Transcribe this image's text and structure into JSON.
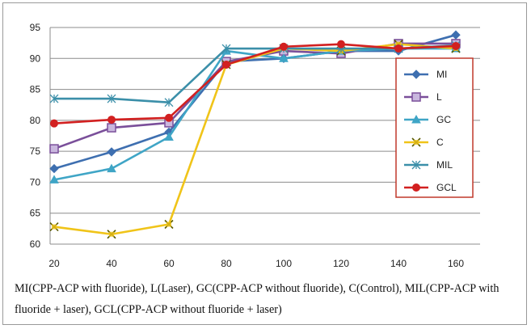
{
  "chart_data": {
    "type": "line",
    "x": [
      20,
      40,
      60,
      80,
      100,
      120,
      140,
      160
    ],
    "ylim": [
      60,
      95
    ],
    "yticks": [
      60,
      65,
      70,
      75,
      80,
      85,
      90,
      95
    ],
    "grid": true,
    "legend_position": "right",
    "series": [
      {
        "name": "MI",
        "values": [
          72.2,
          74.9,
          78.1,
          89.5,
          90.0,
          91.2,
          91.2,
          93.8
        ],
        "color": "#3e6fb0",
        "marker": "diamond"
      },
      {
        "name": "L",
        "values": [
          75.4,
          78.8,
          79.6,
          89.5,
          91.2,
          90.8,
          92.4,
          92.4
        ],
        "color": "#7a4f9a",
        "marker": "square"
      },
      {
        "name": "GC",
        "values": [
          70.4,
          72.2,
          77.3,
          91.2,
          90.0,
          91.2,
          91.6,
          91.6
        ],
        "color": "#3fa5c6",
        "marker": "triangle"
      },
      {
        "name": "C",
        "values": [
          62.8,
          61.6,
          63.2,
          89.0,
          91.6,
          91.2,
          92.3,
          91.6
        ],
        "color": "#f0c419",
        "marker": "x"
      },
      {
        "name": "MIL",
        "values": [
          83.5,
          83.5,
          82.9,
          91.6,
          91.6,
          91.6,
          91.6,
          92.1
        ],
        "color": "#3b8fa9",
        "marker": "star"
      },
      {
        "name": "GCL",
        "values": [
          79.5,
          80.1,
          80.4,
          89.0,
          91.9,
          92.3,
          91.6,
          92.0
        ],
        "color": "#d22020",
        "marker": "circle"
      }
    ]
  },
  "caption": {
    "text": "MI(CPP-ACP with fluoride), L(Laser), GC(CPP-ACP without fluoride), C(Control), MIL(CPP-ACP with fluoride + laser), GCL(CPP-ACP without fluoride + laser)"
  }
}
